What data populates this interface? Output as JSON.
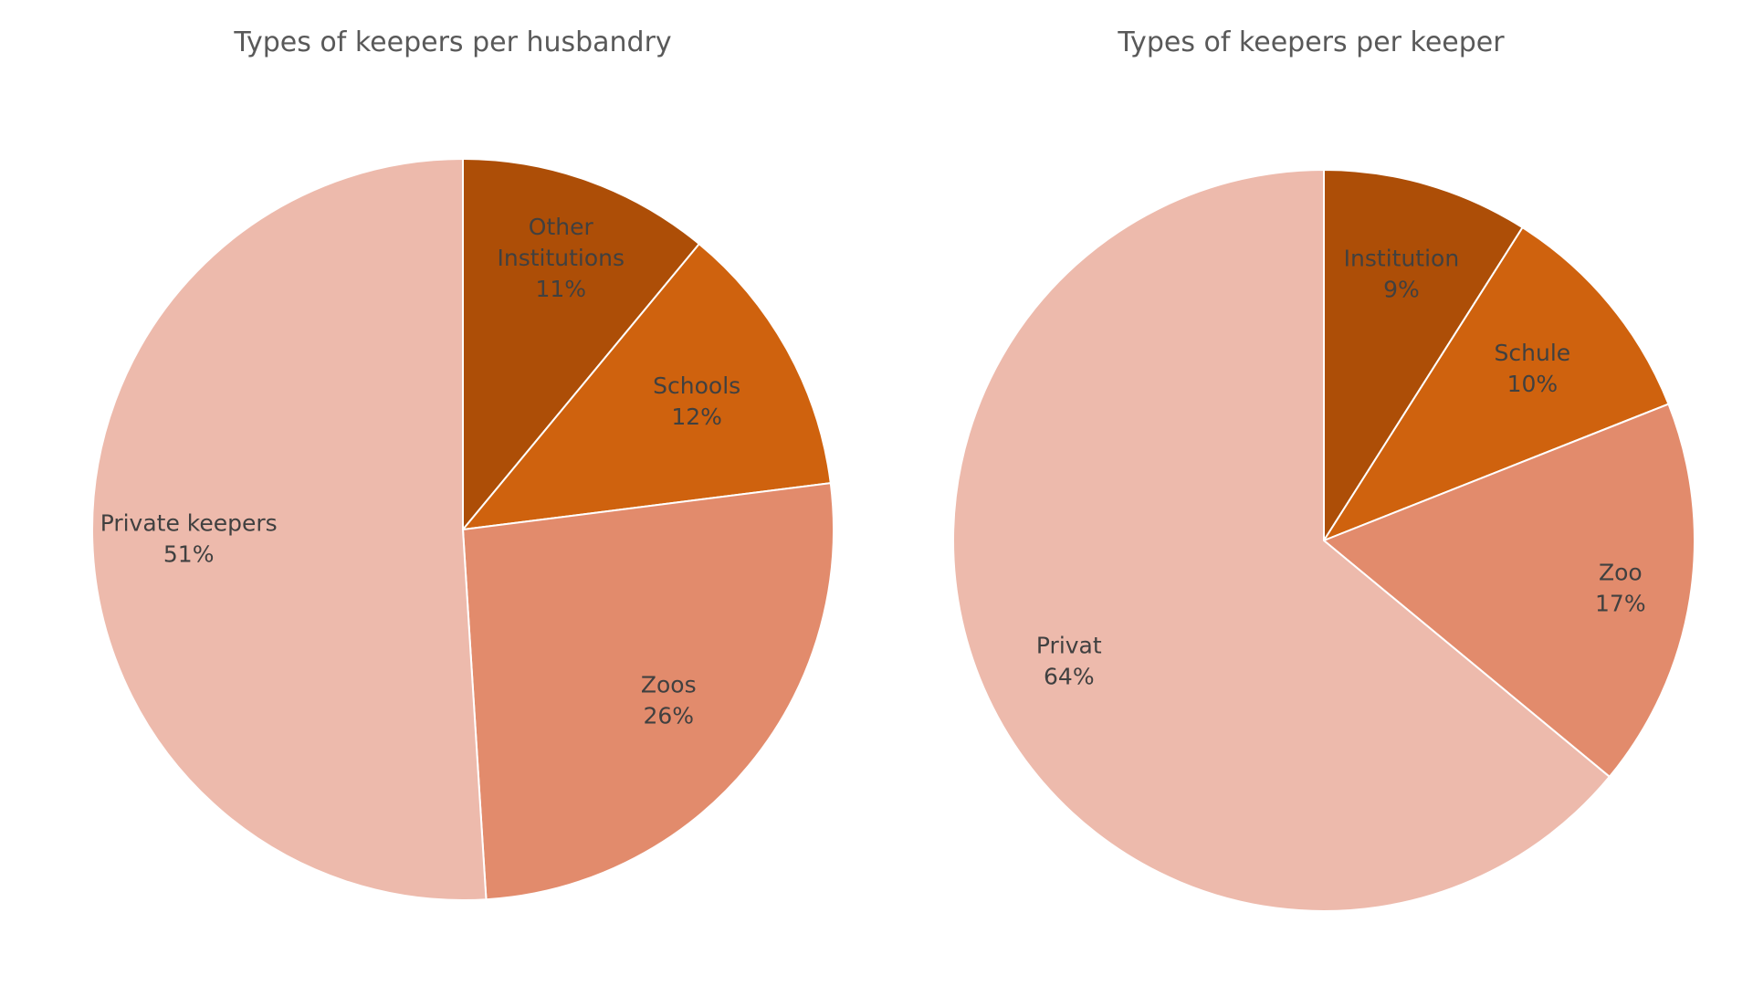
{
  "chart_data": [
    {
      "type": "pie",
      "title": "Types of keepers per husbandry",
      "start": "12 o'clock, clockwise",
      "slices": [
        {
          "label": [
            "Other",
            "Institutions"
          ],
          "value": 11,
          "value_label": "11%",
          "color": "#AD4E07"
        },
        {
          "label": [
            "Schools"
          ],
          "value": 12,
          "value_label": "12%",
          "color": "#CF620E"
        },
        {
          "label": [
            "Zoos"
          ],
          "value": 26,
          "value_label": "26%",
          "color": "#E28B6C"
        },
        {
          "label": [
            "Private keepers"
          ],
          "value": 51,
          "value_label": "51%",
          "color": "#EDBAAC"
        }
      ]
    },
    {
      "type": "pie",
      "title": "Types of keepers per keeper",
      "start": "12 o'clock, clockwise",
      "slices": [
        {
          "label": [
            "Institution"
          ],
          "value": 9,
          "value_label": "9%",
          "color": "#AD4E07"
        },
        {
          "label": [
            "Schule"
          ],
          "value": 10,
          "value_label": "10%",
          "color": "#CF620E"
        },
        {
          "label": [
            "Zoo"
          ],
          "value": 17,
          "value_label": "17%",
          "color": "#E28B6C"
        },
        {
          "label": [
            "Privat"
          ],
          "value": 64,
          "value_label": "64%",
          "color": "#EDBAAC"
        }
      ]
    }
  ]
}
